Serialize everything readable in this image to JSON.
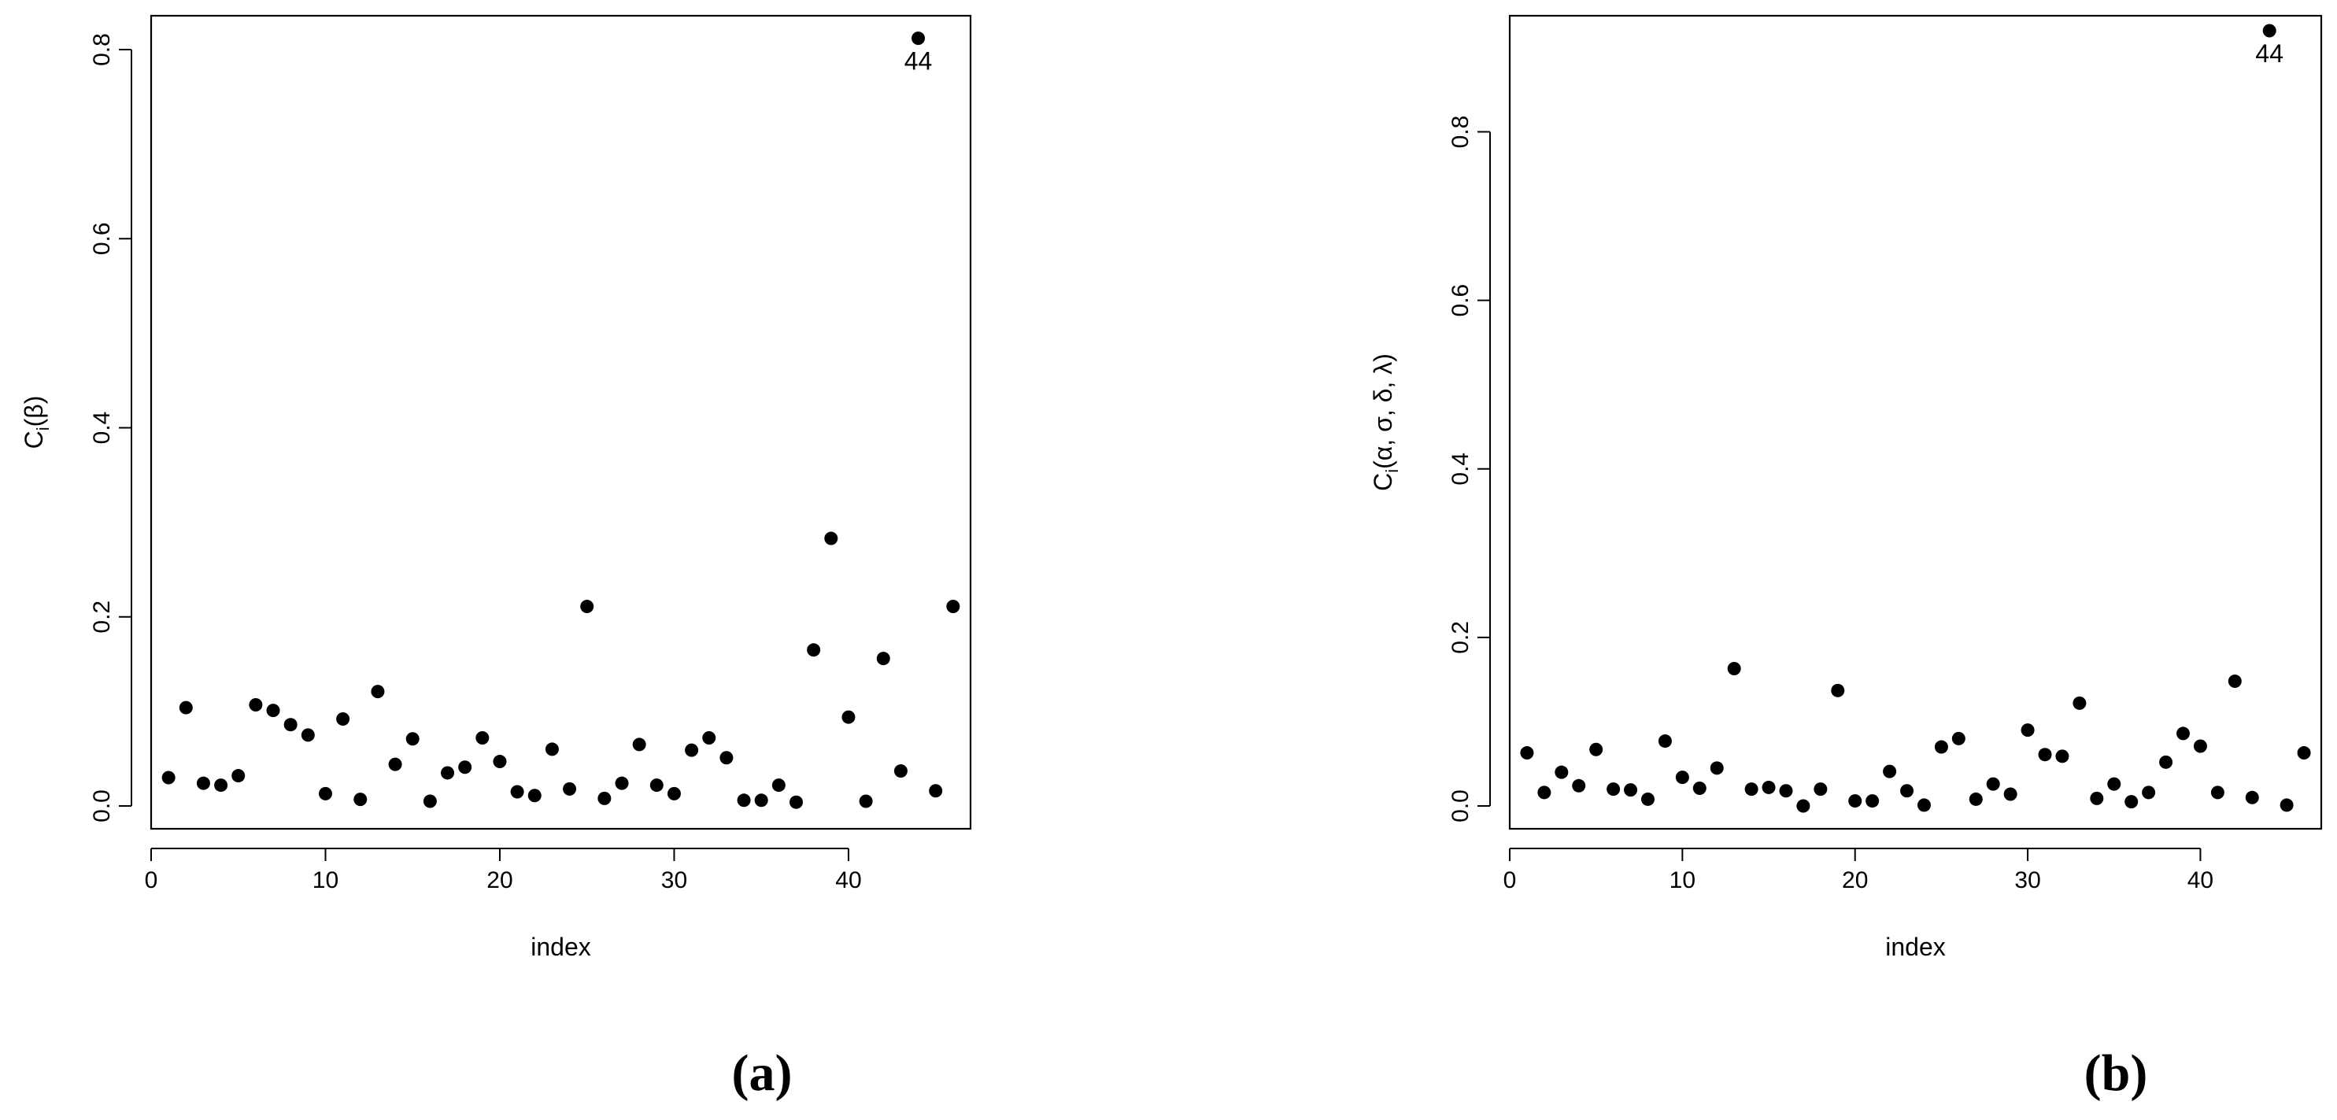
{
  "chart_data": [
    {
      "type": "scatter",
      "panel_label": "(a)",
      "xlabel": "index",
      "ylabel_main": "C",
      "ylabel_sub": "i",
      "ylabel_args": "(β)",
      "xlim": [
        0,
        47
      ],
      "ylim": [
        0,
        0.82
      ],
      "xticks": [
        0,
        10,
        20,
        30,
        40
      ],
      "yticks": [
        0.0,
        0.2,
        0.4,
        0.6,
        0.8
      ],
      "ytick_labels": [
        "0.0",
        "0.2",
        "0.4",
        "0.6",
        "0.8"
      ],
      "x": [
        1,
        2,
        3,
        4,
        5,
        6,
        7,
        8,
        9,
        10,
        11,
        12,
        13,
        14,
        15,
        16,
        17,
        18,
        19,
        20,
        21,
        22,
        23,
        24,
        25,
        26,
        27,
        28,
        29,
        30,
        31,
        32,
        33,
        34,
        35,
        36,
        37,
        38,
        39,
        40,
        41,
        42,
        43,
        44,
        45,
        46
      ],
      "y": [
        0.03,
        0.104,
        0.024,
        0.022,
        0.032,
        0.107,
        0.101,
        0.086,
        0.075,
        0.013,
        0.092,
        0.007,
        0.121,
        0.044,
        0.071,
        0.005,
        0.035,
        0.041,
        0.072,
        0.047,
        0.015,
        0.011,
        0.06,
        0.018,
        0.211,
        0.008,
        0.024,
        0.065,
        0.022,
        0.013,
        0.059,
        0.072,
        0.051,
        0.006,
        0.006,
        0.022,
        0.004,
        0.165,
        0.283,
        0.094,
        0.005,
        0.156,
        0.037,
        0.812,
        0.016,
        0.211
      ],
      "annotations": [
        {
          "x": 44,
          "y": 0.812,
          "text": "44"
        }
      ],
      "grid": false,
      "legend": "none"
    },
    {
      "type": "scatter",
      "panel_label": "(b)",
      "xlabel": "index",
      "ylabel_main": "C",
      "ylabel_sub": "i",
      "ylabel_args": "(α, σ, δ, λ)",
      "xlim": [
        0,
        47
      ],
      "ylim": [
        0,
        0.92
      ],
      "xticks": [
        0,
        10,
        20,
        30,
        40
      ],
      "yticks": [
        0.0,
        0.2,
        0.4,
        0.6,
        0.8
      ],
      "ytick_labels": [
        "0.0",
        "0.2",
        "0.4",
        "0.6",
        "0.8"
      ],
      "x": [
        1,
        2,
        3,
        4,
        5,
        6,
        7,
        8,
        9,
        10,
        11,
        12,
        13,
        14,
        15,
        16,
        17,
        18,
        19,
        20,
        21,
        22,
        23,
        24,
        25,
        26,
        27,
        28,
        29,
        30,
        31,
        32,
        33,
        34,
        35,
        36,
        37,
        38,
        39,
        40,
        41,
        42,
        43,
        44,
        45,
        46
      ],
      "y": [
        0.063,
        0.016,
        0.04,
        0.024,
        0.067,
        0.02,
        0.019,
        0.008,
        0.077,
        0.034,
        0.021,
        0.045,
        0.163,
        0.02,
        0.022,
        0.018,
        0.0,
        0.02,
        0.137,
        0.006,
        0.006,
        0.041,
        0.018,
        0.001,
        0.07,
        0.08,
        0.008,
        0.026,
        0.014,
        0.09,
        0.061,
        0.059,
        0.122,
        0.009,
        0.026,
        0.005,
        0.016,
        0.052,
        0.086,
        0.071,
        0.016,
        0.148,
        0.01,
        0.92,
        0.001,
        0.063
      ],
      "annotations": [
        {
          "x": 44,
          "y": 0.92,
          "text": "44"
        }
      ],
      "grid": false,
      "legend": "none"
    }
  ]
}
